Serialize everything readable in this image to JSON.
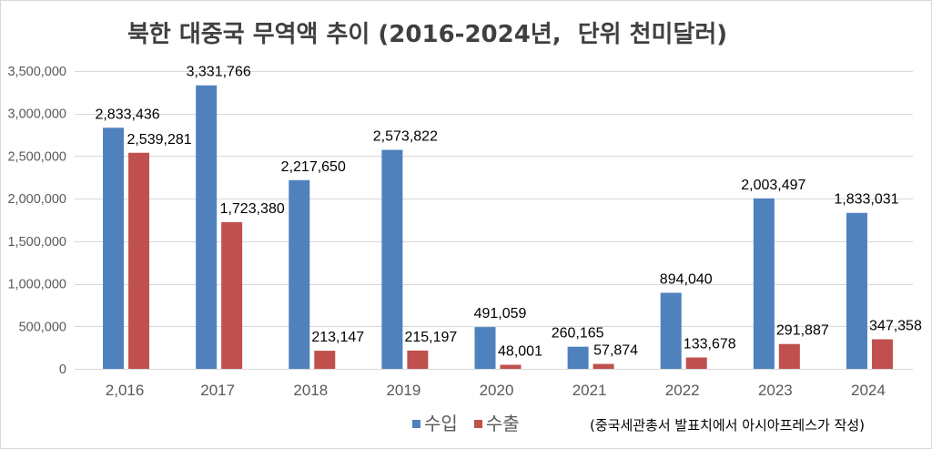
{
  "chart_data": {
    "type": "bar",
    "title": "북한 대중국 무역액 추이 (2016-2024년,  단위 천미달러)",
    "xlabel": "",
    "ylabel": "",
    "categories": [
      "2,016",
      "2017",
      "2018",
      "2019",
      "2020",
      "2021",
      "2022",
      "2023",
      "2024"
    ],
    "series": [
      {
        "name": "수입",
        "color": "#4F81BD",
        "values": [
          2833436,
          3331766,
          2217650,
          2573822,
          491059,
          260165,
          894040,
          2003497,
          1833031
        ]
      },
      {
        "name": "수출",
        "color": "#C0504D",
        "values": [
          2539281,
          1723380,
          213147,
          215197,
          48001,
          57874,
          133678,
          291887,
          347358
        ]
      }
    ],
    "ylim": [
      0,
      3500000
    ],
    "yticks": [
      0,
      500000,
      1000000,
      1500000,
      2000000,
      2500000,
      3000000,
      3500000
    ],
    "data_labels": true,
    "grid": true,
    "legend": "bottom",
    "note": "(중국세관총서 발표치에서 아시아프레스가 작성)"
  },
  "colors": {
    "title": "#404040",
    "axis_text": "#595959",
    "grid": "#D9D9D9",
    "border": "#D9D9D9",
    "data_label": "#000000"
  }
}
